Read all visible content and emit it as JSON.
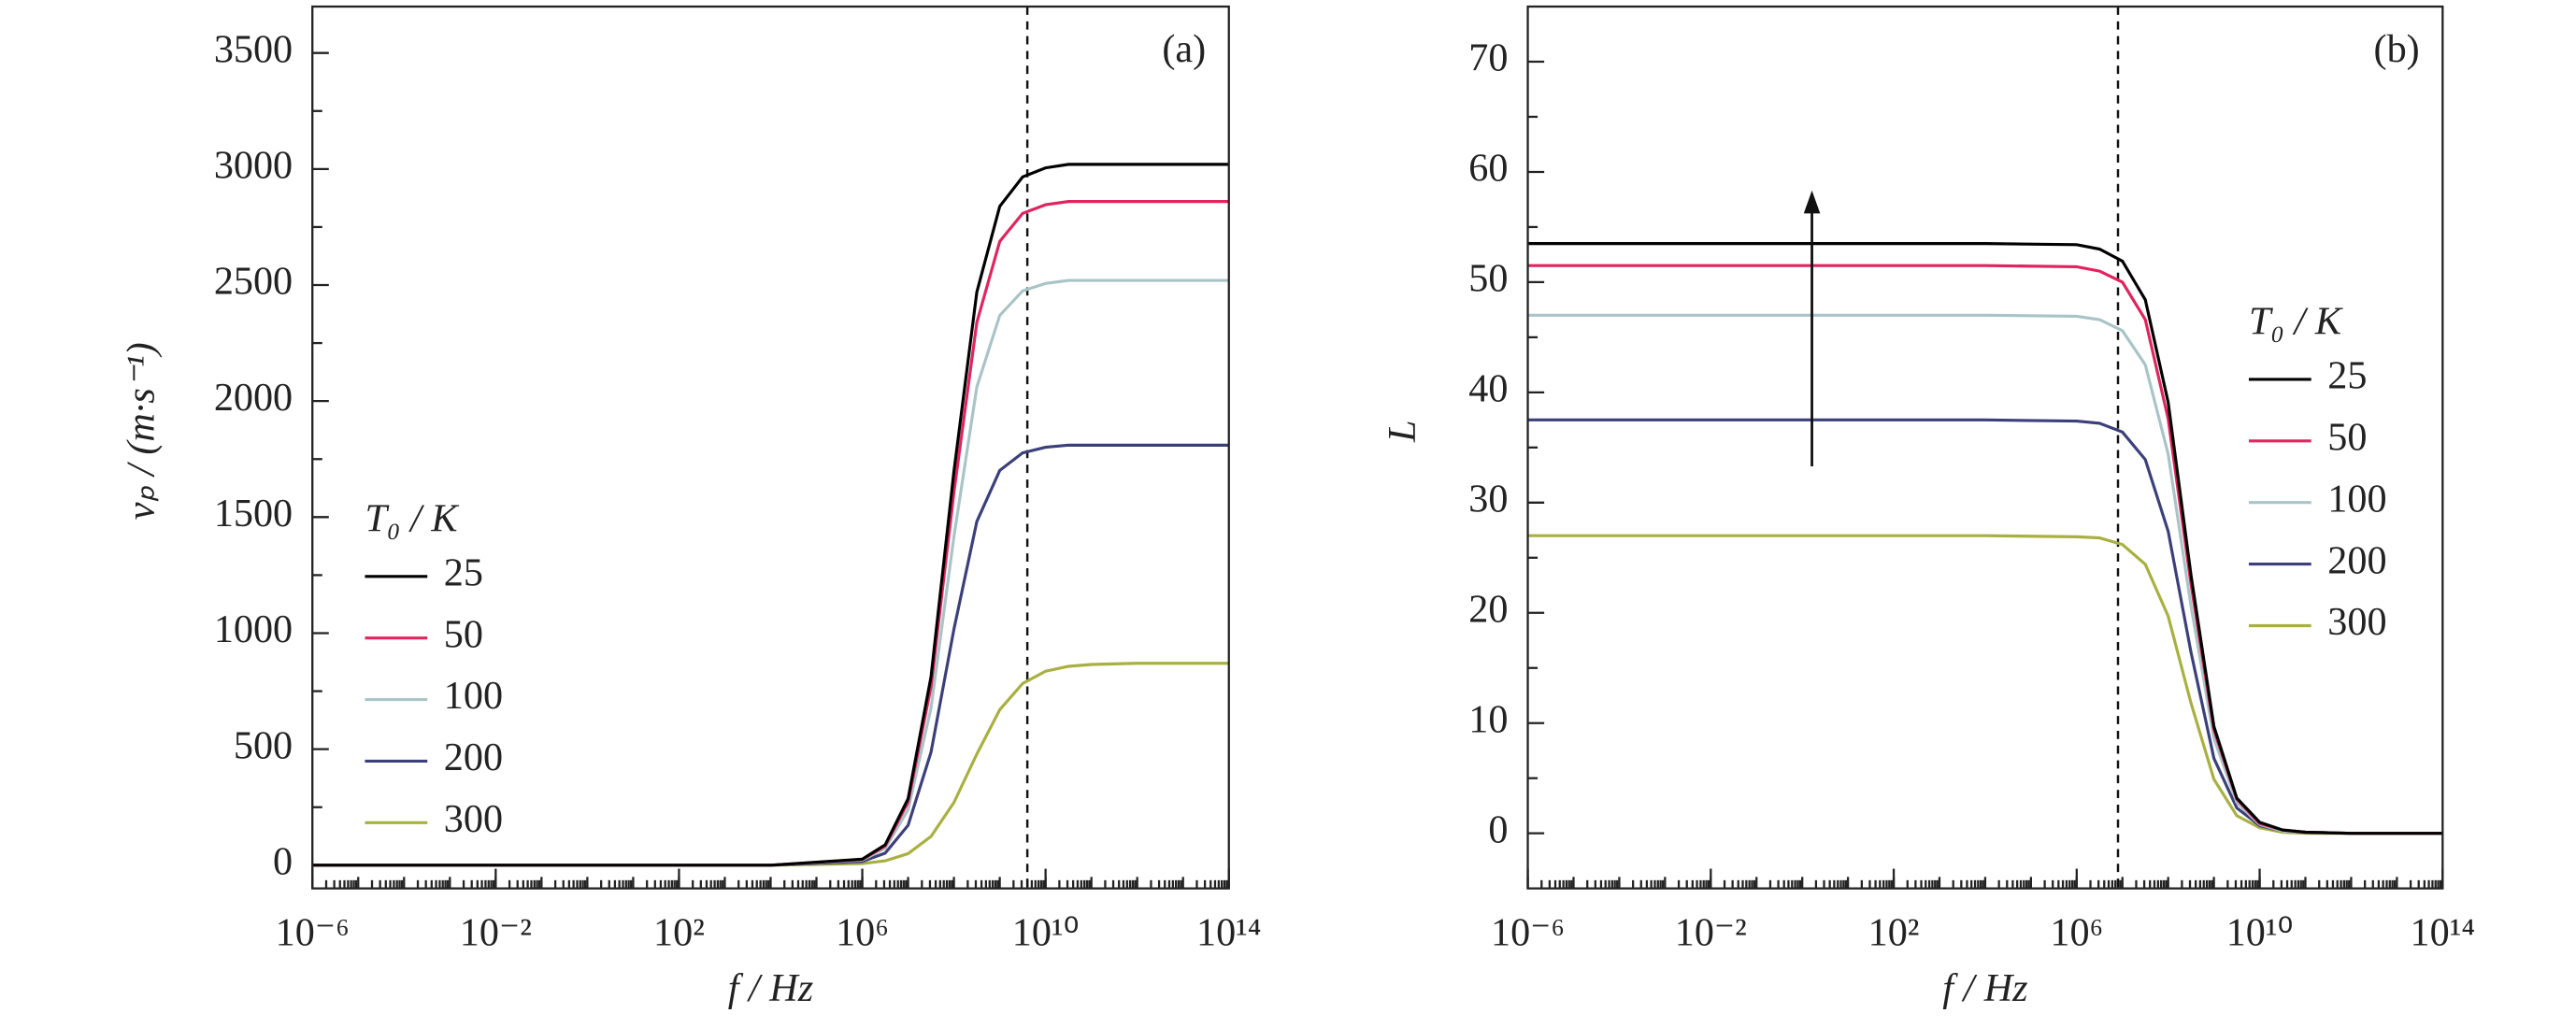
{
  "chart_data": [
    {
      "type": "line",
      "panel_label": "(a)",
      "xlabel": "f / Hz",
      "ylabel": "vₚ / (m·s⁻¹)",
      "xscale": "log",
      "xlim": [
        1e-06,
        100000000000000.0
      ],
      "ylim": [
        -100,
        3700
      ],
      "xticks": [
        {
          "value": 1e-06,
          "label": "10⁻⁶"
        },
        {
          "value": 0.01,
          "label": "10⁻²"
        },
        {
          "value": 100,
          "label": "10²"
        },
        {
          "value": 1000000,
          "label": "10⁶"
        },
        {
          "value": 10000000000,
          "label": "10¹⁰"
        },
        {
          "value": 100000000000000,
          "label": "10¹⁴"
        }
      ],
      "yticks": [
        0,
        500,
        1000,
        1500,
        2000,
        2500,
        3000,
        3500
      ],
      "vline": 4000000000,
      "legend_title": "T₀ / K",
      "legend_position": "center left",
      "x": [
        1e-06,
        1,
        10000,
        1000000,
        3162278,
        10000000,
        31622777,
        100000000,
        316227766,
        1000000000,
        3162277660,
        10000000000,
        31622776602,
        100000000000,
        1000000000000,
        100000000000000
      ],
      "series": [
        {
          "name": "25",
          "color": "#000000",
          "values": [
            0,
            0,
            0,
            26,
            88,
            287,
            812,
            1697,
            2470,
            2839,
            2966,
            3005,
            3020,
            3020,
            3020,
            3020
          ]
        },
        {
          "name": "50",
          "color": "#e0245e",
          "values": [
            0,
            0,
            0,
            25,
            83,
            272,
            769,
            1607,
            2339,
            2688,
            2809,
            2846,
            2860,
            2860,
            2860,
            2860
          ]
        },
        {
          "name": "100",
          "color": "#a9c4c6",
          "values": [
            0,
            0,
            0,
            22,
            73,
            239,
            678,
            1416,
            2061,
            2369,
            2475,
            2507,
            2520,
            2520,
            2520,
            2520
          ]
        },
        {
          "name": "200",
          "color": "#3b3f7a",
          "values": [
            0,
            0,
            0,
            16,
            52,
            172,
            487,
            1017,
            1481,
            1701,
            1777,
            1801,
            1810,
            1810,
            1810,
            1810
          ]
        },
        {
          "name": "300",
          "color": "#a8b040",
          "values": [
            0,
            0,
            0,
            7,
            19,
            50,
            124,
            270,
            479,
            670,
            783,
            836,
            857,
            865,
            870,
            870
          ]
        }
      ]
    },
    {
      "type": "line",
      "panel_label": "(b)",
      "xlabel": "f / Hz",
      "ylabel": "L",
      "xscale": "log",
      "xlim": [
        1e-06,
        100000000000000.0
      ],
      "ylim": [
        -5,
        75
      ],
      "xticks": [
        {
          "value": 1e-06,
          "label": "10⁻⁶"
        },
        {
          "value": 0.01,
          "label": "10⁻²"
        },
        {
          "value": 100,
          "label": "10²"
        },
        {
          "value": 1000000,
          "label": "10⁶"
        },
        {
          "value": 10000000000,
          "label": "10¹⁰"
        },
        {
          "value": 100000000000000,
          "label": "10¹⁴"
        }
      ],
      "yticks": [
        0,
        10,
        20,
        30,
        40,
        50,
        60,
        70
      ],
      "vline": 8000000,
      "legend_title": "T₀ / K",
      "legend_position": "center right",
      "x": [
        1e-06,
        1,
        10000,
        1000000,
        3162278,
        10000000,
        31622777,
        100000000,
        316227766,
        1000000000,
        3162277660,
        10000000000,
        31622776602,
        100000000000,
        1000000000000,
        100000000000000
      ],
      "series": [
        {
          "name": "25",
          "color": "#000000",
          "values": [
            53.5,
            53.5,
            53.5,
            53.4,
            53.0,
            51.9,
            48.4,
            39.1,
            23.4,
            9.7,
            3.2,
            1.0,
            0.3,
            0.1,
            0,
            0
          ]
        },
        {
          "name": "50",
          "color": "#e0245e",
          "values": [
            51.5,
            51.5,
            51.5,
            51.4,
            51.0,
            50.0,
            46.6,
            37.6,
            22.6,
            9.4,
            3.1,
            0.9,
            0.3,
            0.1,
            0,
            0
          ]
        },
        {
          "name": "100",
          "color": "#a9c4c6",
          "values": [
            47,
            47,
            47,
            46.9,
            46.6,
            45.6,
            42.5,
            34.4,
            20.6,
            8.6,
            2.8,
            0.8,
            0.2,
            0.1,
            0,
            0
          ]
        },
        {
          "name": "200",
          "color": "#3b3f7a",
          "values": [
            37.5,
            37.5,
            37.5,
            37.4,
            37.2,
            36.4,
            33.9,
            27.4,
            16.4,
            6.8,
            2.3,
            0.7,
            0.2,
            0.1,
            0,
            0
          ]
        },
        {
          "name": "300",
          "color": "#a8b040",
          "values": [
            27,
            27,
            27,
            26.9,
            26.8,
            26.2,
            24.4,
            19.7,
            11.8,
            4.9,
            1.6,
            0.5,
            0.1,
            0,
            0,
            0
          ]
        }
      ]
    }
  ]
}
